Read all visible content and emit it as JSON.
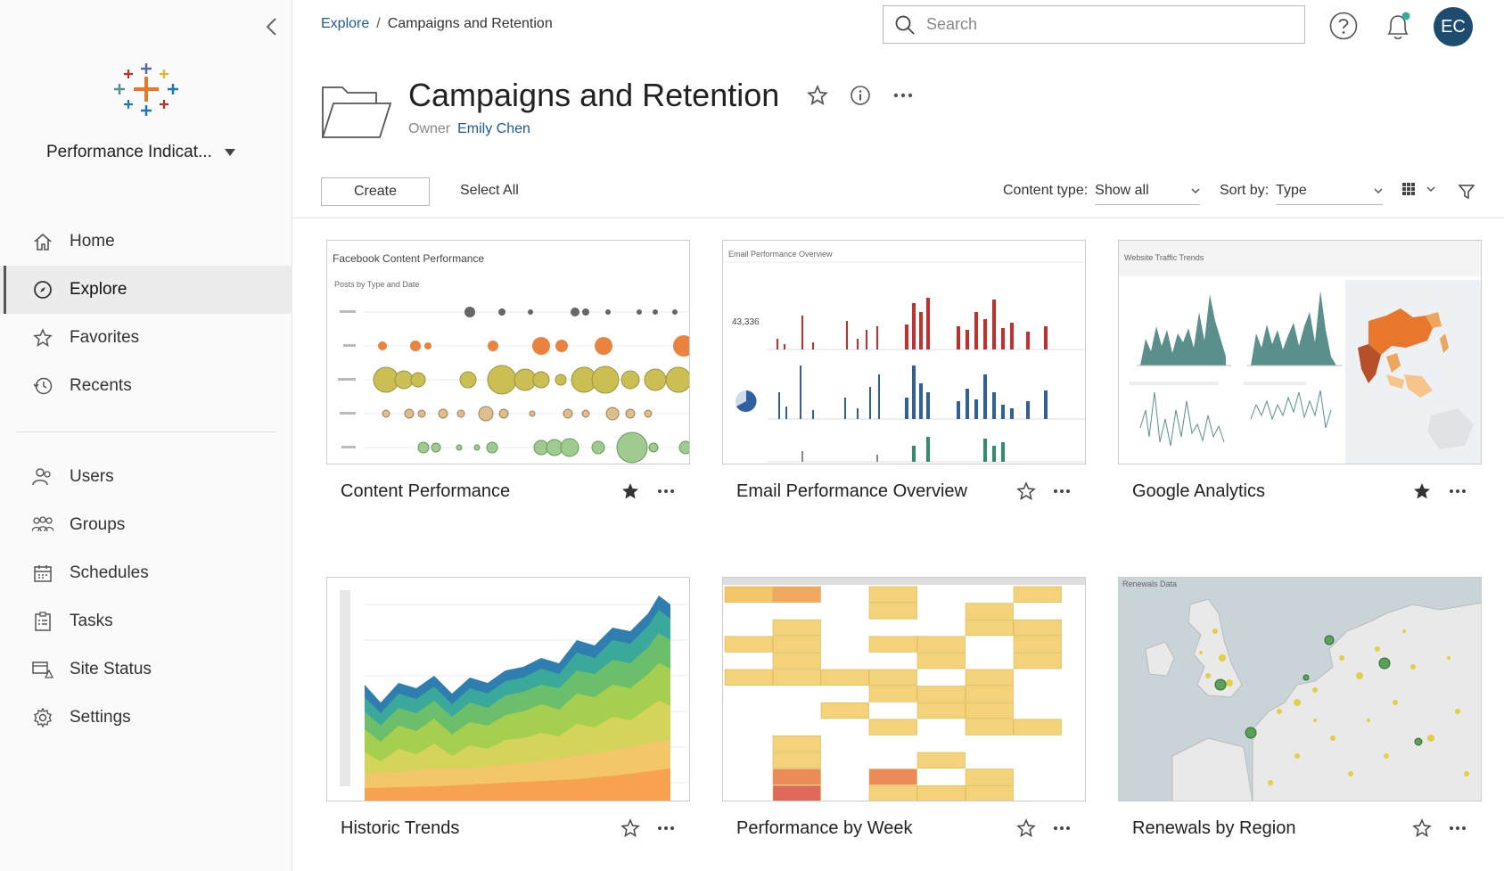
{
  "sidebar": {
    "site_name": "Performance Indicat...",
    "nav_primary": [
      {
        "label": "Home",
        "icon": "home-icon"
      },
      {
        "label": "Explore",
        "icon": "compass-icon",
        "active": true
      },
      {
        "label": "Favorites",
        "icon": "star-icon"
      },
      {
        "label": "Recents",
        "icon": "clock-icon"
      }
    ],
    "nav_admin": [
      {
        "label": "Users",
        "icon": "users-icon"
      },
      {
        "label": "Groups",
        "icon": "groups-icon"
      },
      {
        "label": "Schedules",
        "icon": "calendar-icon"
      },
      {
        "label": "Tasks",
        "icon": "clipboard-icon"
      },
      {
        "label": "Site Status",
        "icon": "monitor-icon"
      },
      {
        "label": "Settings",
        "icon": "gear-icon"
      }
    ]
  },
  "header": {
    "breadcrumb_root": "Explore",
    "breadcrumb_sep": "/",
    "breadcrumb_current": "Campaigns and Retention",
    "search_placeholder": "Search",
    "avatar_initials": "EC",
    "avatar_color": "#1d4c6e",
    "notification_dot_color": "#3aa89a"
  },
  "project": {
    "title": "Campaigns and Retention",
    "owner_label": "Owner",
    "owner_name": "Emily Chen"
  },
  "toolbar": {
    "create_label": "Create",
    "select_all_label": "Select All",
    "content_type_label": "Content type:",
    "content_type_value": "Show all",
    "sort_label": "Sort by:",
    "sort_value": "Type"
  },
  "cards": [
    {
      "title": "Content Performance",
      "favorite": true,
      "thumb_title": "Facebook Content Performance",
      "thumb_subtitle": "Posts by Type and Date"
    },
    {
      "title": "Email Performance Overview",
      "favorite": false,
      "thumb_title": "Email Performance Overview",
      "thumb_kpi": "43,336"
    },
    {
      "title": "Google Analytics",
      "favorite": true,
      "thumb_title": "Website Traffic Trends"
    },
    {
      "title": "Historic Trends",
      "favorite": false
    },
    {
      "title": "Performance by Week",
      "favorite": false
    },
    {
      "title": "Renewals by Region",
      "favorite": false,
      "thumb_title": "Renewals Data"
    }
  ],
  "colors": {
    "link": "#1f5a93",
    "tableau_blue": "#1f77b4",
    "tableau_orange": "#e8762b",
    "tableau_red": "#c72e29",
    "tableau_teal": "#5a8f8c"
  }
}
